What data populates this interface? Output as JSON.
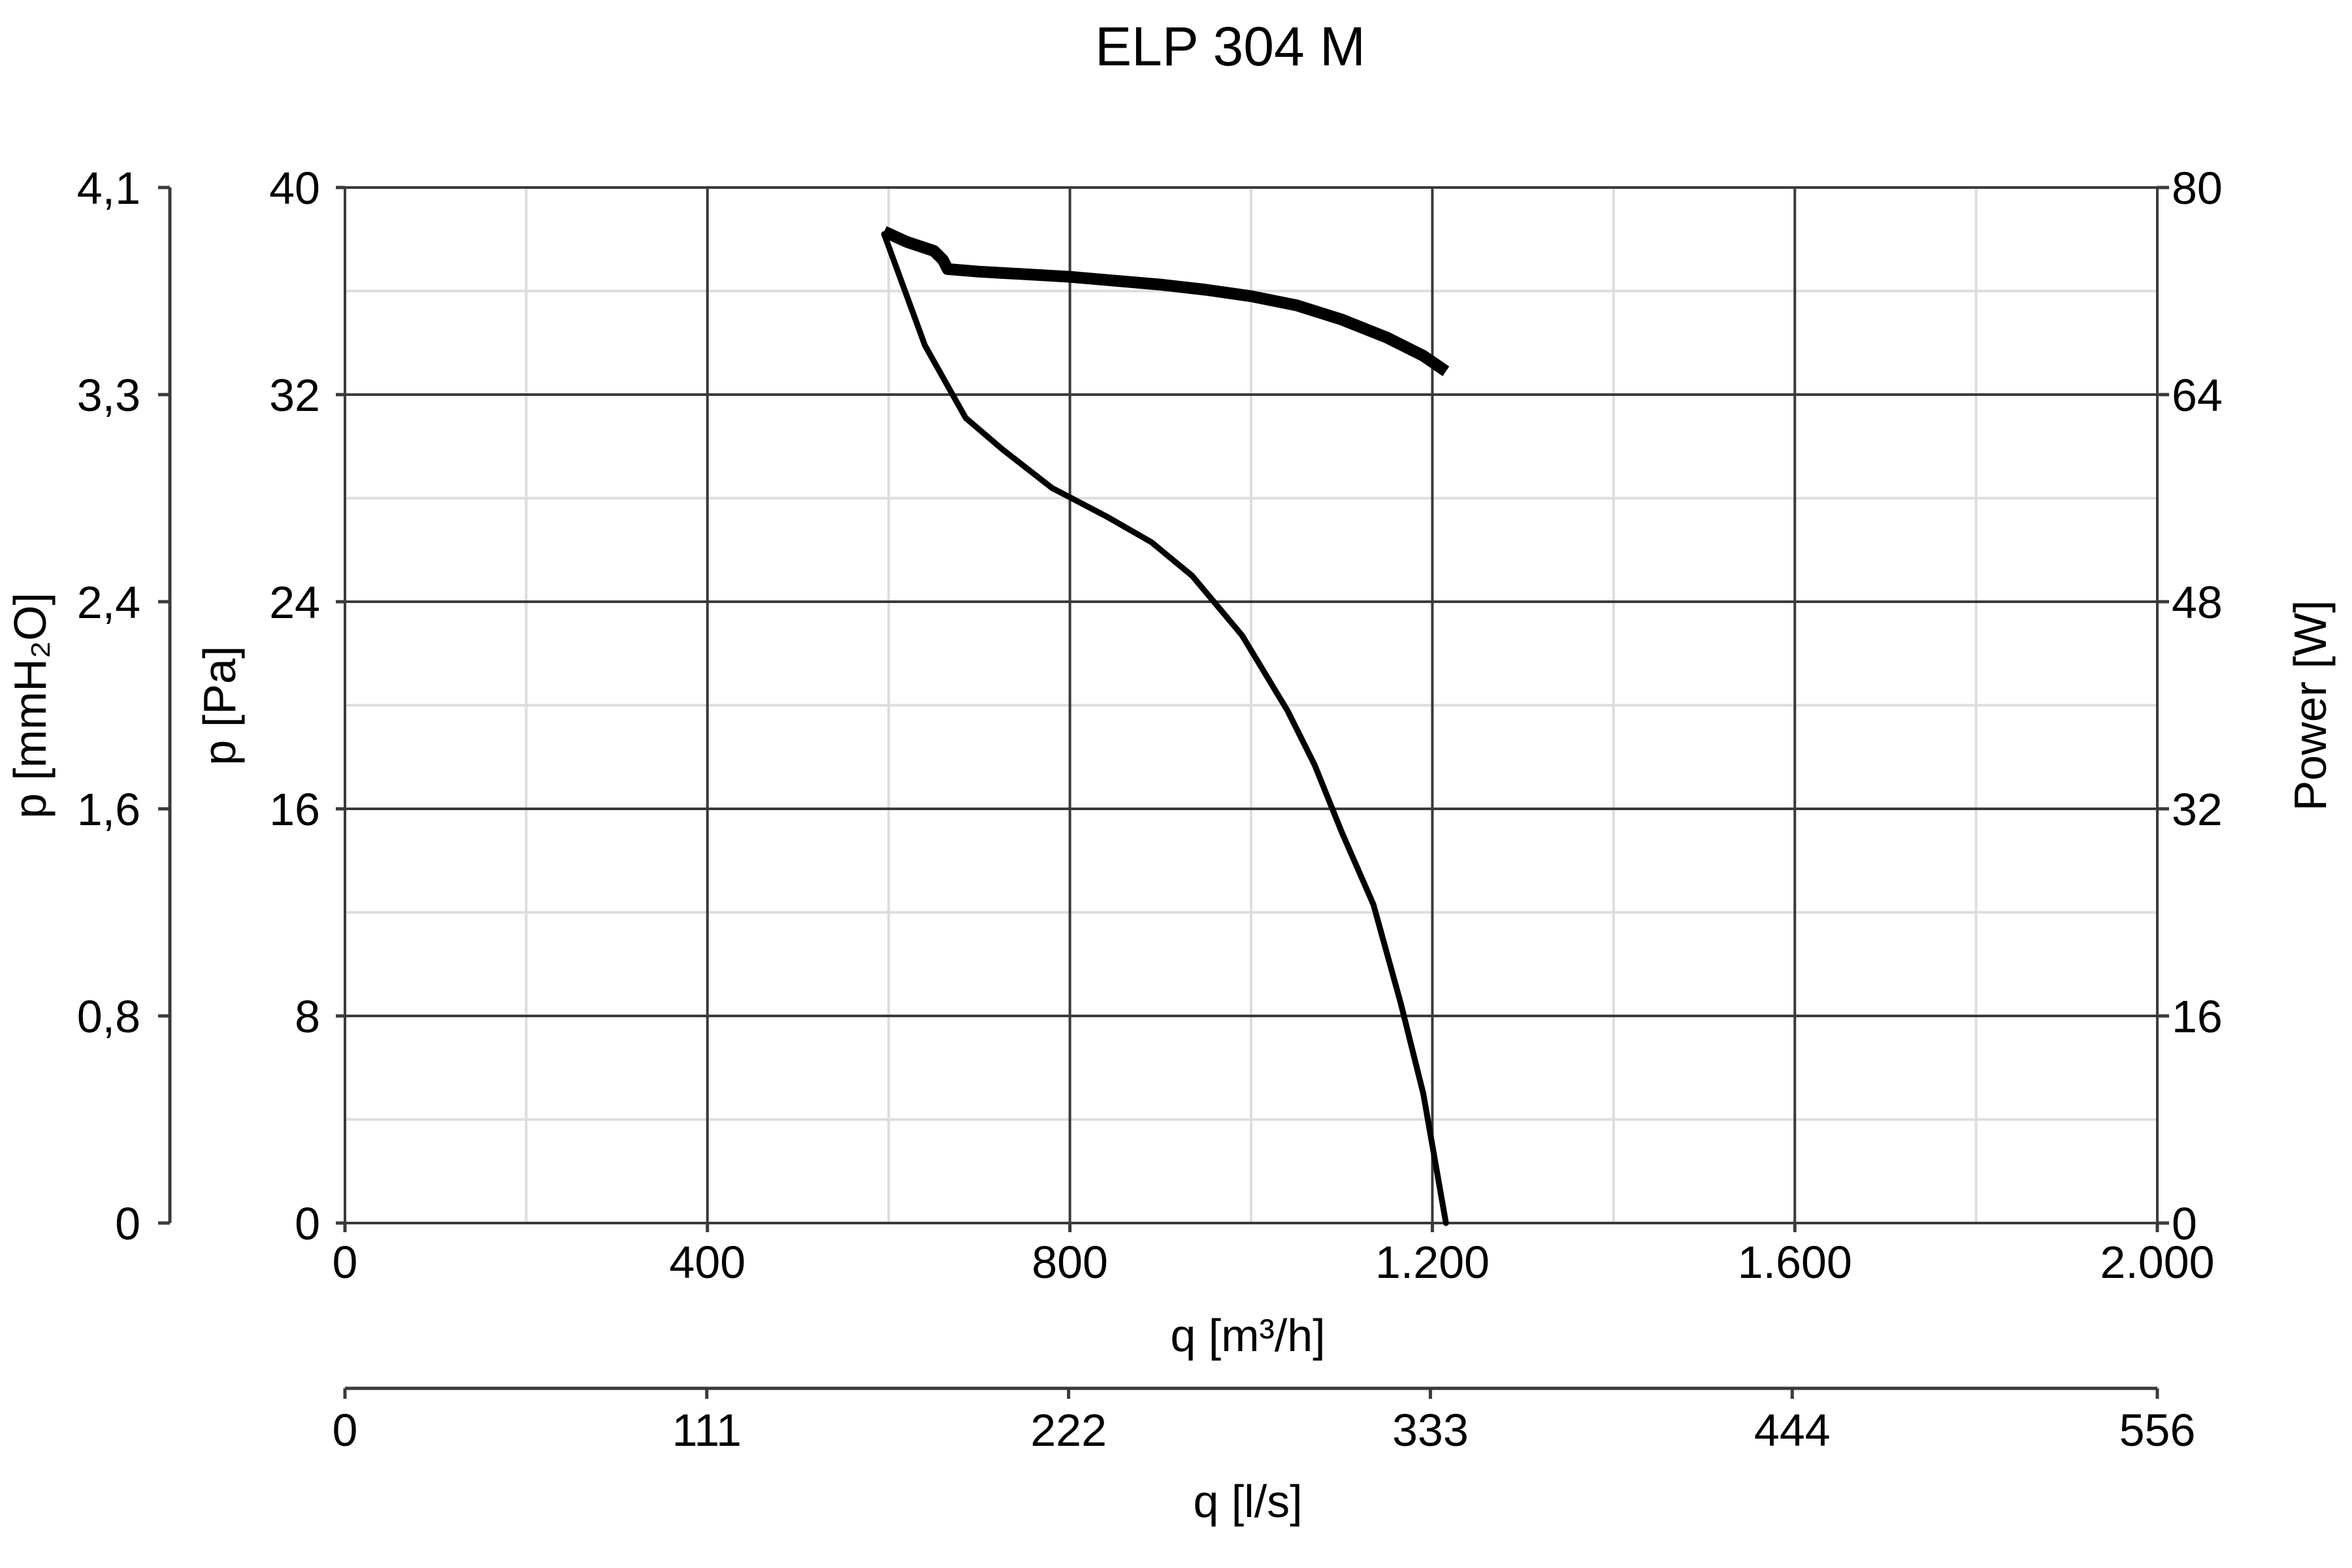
{
  "chart_data": {
    "type": "line",
    "title": "ELP 304 M",
    "xlabel": "q [m³/h]",
    "xlim": [
      0,
      2000
    ],
    "x_ticks": [
      "0",
      "400",
      "800",
      "1.200",
      "1.600",
      "2.000"
    ],
    "x_tick_values": [
      0,
      400,
      800,
      1200,
      1600,
      2000
    ],
    "x2label": "q [l/s]",
    "x2lim": [
      0,
      556
    ],
    "x2_ticks": [
      "0",
      "111",
      "222",
      "333",
      "444",
      "556"
    ],
    "x2_tick_values": [
      0,
      111,
      222,
      333,
      444,
      556
    ],
    "ylabel": "p [Pa]",
    "ylim": [
      0,
      40
    ],
    "y_ticks": [
      "0",
      "8",
      "16",
      "24",
      "32",
      "40"
    ],
    "y_tick_values": [
      0,
      8,
      16,
      24,
      32,
      40
    ],
    "y_mmh2o_label": "p [mmH₂O]",
    "y_mmh2o_ticks": [
      "0",
      "0,8",
      "1,6",
      "2,4",
      "3,3",
      "4,1"
    ],
    "y_mmh2o_tick_values": [
      0,
      0.8,
      1.6,
      2.4,
      3.3,
      4.1
    ],
    "y2label": "Power [W]",
    "y2lim": [
      0,
      80
    ],
    "y2_ticks": [
      "0",
      "16",
      "32",
      "48",
      "64",
      "80"
    ],
    "y2_tick_values": [
      0,
      16,
      32,
      48,
      64,
      80
    ],
    "grid": true,
    "series": [
      {
        "axis": "p [Pa]",
        "x": [
          595,
          640,
          685,
          725,
          780,
          840,
          890,
          935,
          990,
          1040,
          1070,
          1100,
          1135,
          1165,
          1190,
          1215
        ],
        "y": [
          38.2,
          33.9,
          31.1,
          29.9,
          28.4,
          27.3,
          26.3,
          25.0,
          22.7,
          19.8,
          17.7,
          15.1,
          12.3,
          8.5,
          5.0,
          0
        ]
      },
      {
        "axis": "Power [W]",
        "x": [
          595,
          620,
          650,
          660,
          665,
          700,
          750,
          800,
          850,
          900,
          950,
          1000,
          1050,
          1100,
          1150,
          1190,
          1215
        ],
        "y": [
          76.6,
          75.8,
          75.1,
          74.4,
          73.7,
          73.5,
          73.3,
          73.1,
          72.8,
          72.5,
          72.1,
          71.6,
          70.9,
          69.8,
          68.4,
          67.0,
          65.8
        ]
      }
    ]
  }
}
